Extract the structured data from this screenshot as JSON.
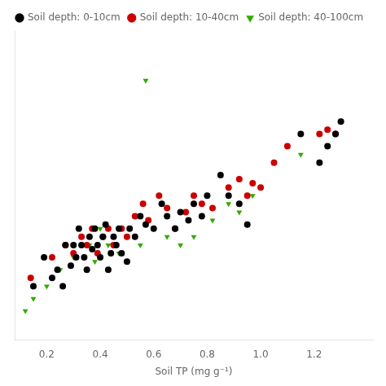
{
  "chart_data": {
    "type": "scatter",
    "xlabel": "Soil TP (mg g⁻¹)",
    "xlim": [
      0.08,
      1.42
    ],
    "ylim": [
      0.15,
      0.9
    ],
    "xticks": [
      0.2,
      0.4,
      0.6,
      0.8,
      {
        "value": 1.0,
        "label": "1.0"
      },
      1.2
    ],
    "grid": false,
    "legend": "upper left",
    "tick_labels": "x",
    "series": [
      {
        "name": "Soil depth: 0-10cm",
        "color": "#000000",
        "marker": "circle",
        "x": [
          0.15,
          0.19,
          0.22,
          0.24,
          0.26,
          0.27,
          0.29,
          0.3,
          0.31,
          0.32,
          0.33,
          0.34,
          0.35,
          0.36,
          0.37,
          0.38,
          0.39,
          0.4,
          0.41,
          0.42,
          0.43,
          0.44,
          0.45,
          0.46,
          0.47,
          0.48,
          0.5,
          0.51,
          0.53,
          0.55,
          0.57,
          0.6,
          0.63,
          0.65,
          0.68,
          0.7,
          0.73,
          0.75,
          0.78,
          0.8,
          0.85,
          0.88,
          0.92,
          0.95,
          1.15,
          1.22,
          1.25,
          1.28,
          1.3
        ],
        "values": [
          0.28,
          0.35,
          0.3,
          0.32,
          0.28,
          0.38,
          0.33,
          0.38,
          0.35,
          0.42,
          0.38,
          0.35,
          0.32,
          0.4,
          0.37,
          0.42,
          0.38,
          0.35,
          0.4,
          0.43,
          0.32,
          0.36,
          0.4,
          0.38,
          0.42,
          0.36,
          0.34,
          0.42,
          0.4,
          0.45,
          0.43,
          0.42,
          0.48,
          0.45,
          0.42,
          0.46,
          0.44,
          0.48,
          0.45,
          0.5,
          0.55,
          0.5,
          0.48,
          0.43,
          0.65,
          0.58,
          0.62,
          0.65,
          0.68
        ]
      },
      {
        "name": "Soil depth: 10-40cm",
        "color": "#cc0000",
        "marker": "circle",
        "x": [
          0.14,
          0.22,
          0.27,
          0.3,
          0.33,
          0.35,
          0.37,
          0.39,
          0.41,
          0.43,
          0.45,
          0.48,
          0.5,
          0.53,
          0.56,
          0.58,
          0.62,
          0.65,
          0.68,
          0.72,
          0.75,
          0.78,
          0.82,
          0.88,
          0.92,
          0.95,
          0.97,
          1.0,
          1.05,
          1.1,
          1.22,
          1.25,
          1.28
        ],
        "values": [
          0.3,
          0.35,
          0.38,
          0.36,
          0.4,
          0.38,
          0.42,
          0.36,
          0.4,
          0.42,
          0.38,
          0.42,
          0.4,
          0.45,
          0.48,
          0.44,
          0.5,
          0.47,
          0.42,
          0.46,
          0.5,
          0.48,
          0.47,
          0.52,
          0.54,
          0.5,
          0.53,
          0.52,
          0.58,
          0.62,
          0.65,
          0.66,
          0.65
        ]
      },
      {
        "name": "Soil depth: 40-100cm",
        "color": "#33aa00",
        "marker": "triangle_down",
        "x": [
          0.12,
          0.15,
          0.2,
          0.25,
          0.3,
          0.33,
          0.36,
          0.38,
          0.4,
          0.43,
          0.47,
          0.5,
          0.55,
          0.6,
          0.65,
          0.7,
          0.75,
          0.82,
          0.88,
          0.92,
          0.97,
          1.05,
          1.15,
          0.57
        ],
        "values": [
          0.22,
          0.25,
          0.28,
          0.32,
          0.35,
          0.4,
          0.38,
          0.34,
          0.42,
          0.38,
          0.36,
          0.4,
          0.38,
          0.42,
          0.4,
          0.38,
          0.4,
          0.44,
          0.48,
          0.46,
          0.5,
          0.58,
          0.6,
          0.78
        ]
      }
    ]
  }
}
